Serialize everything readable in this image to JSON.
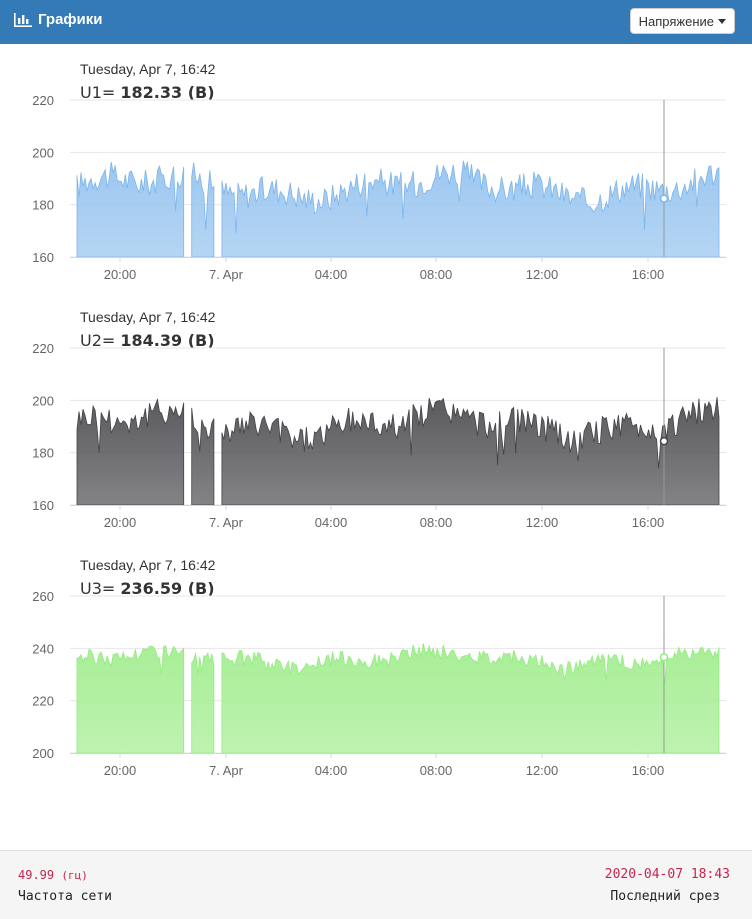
{
  "header": {
    "title": "Графики",
    "dropdown_label": "Напряжение"
  },
  "x_ticks": [
    "20:00",
    "7. Apr",
    "04:00",
    "08:00",
    "12:00",
    "16:00"
  ],
  "chart_data": [
    {
      "type": "area",
      "tooltip_date": "Tuesday, Apr 7, 16:42",
      "series_label": "U1=",
      "value_text": "182.33 (В)",
      "yticks": [
        220,
        200,
        180,
        160
      ],
      "ylim": [
        160,
        220
      ],
      "color": "#9cc7f0",
      "line_color": "#7cb5ec",
      "base": 187,
      "amp": 9,
      "hover_value": 182.33
    },
    {
      "type": "area",
      "tooltip_date": "Tuesday, Apr 7, 16:42",
      "series_label": "U2=",
      "value_text": "184.39 (В)",
      "yticks": [
        220,
        200,
        180,
        160
      ],
      "ylim": [
        160,
        220
      ],
      "color": "#5a5a5e",
      "line_color": "#434348",
      "base": 191,
      "amp": 9,
      "hover_value": 184.39
    },
    {
      "type": "area",
      "tooltip_date": "Tuesday, Apr 7, 16:42",
      "series_label": "U3=",
      "value_text": "236.59 (В)",
      "yticks": [
        260,
        240,
        220,
        200
      ],
      "ylim": [
        200,
        260
      ],
      "color": "#a8ee96",
      "line_color": "#90ed7d",
      "base": 236,
      "amp": 5,
      "hover_value": 236.59
    }
  ],
  "footer": {
    "frequency_value": "49.99",
    "frequency_unit": "(гц)",
    "frequency_label": "Частота сети",
    "last_slice_value": "2020-04-07 18:43",
    "last_slice_label": "Последний срез"
  }
}
